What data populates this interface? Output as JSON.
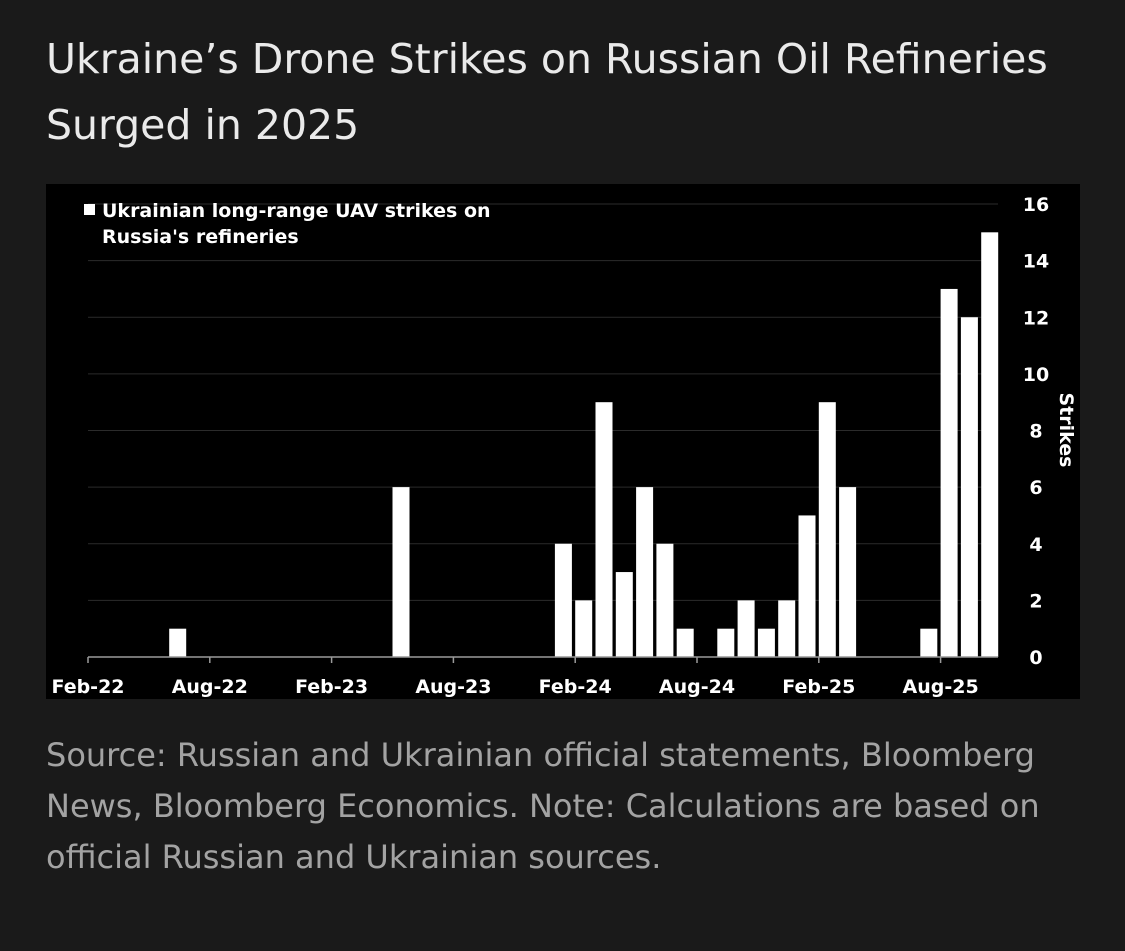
{
  "title": "Ukraine’s Drone Strikes on Russian Oil Refineries Surged in 2025",
  "source_note": "Source: Russian and Ukrainian official statements, Bloomberg News, Bloomberg Economics. Note: Calculations are based on official Russian and Ukrainian sources.",
  "colors": {
    "background": "#1a1a1a",
    "panel": "#000000",
    "bars": "#ffffff",
    "grid": "#2b2b2b",
    "text": "#ffffff"
  },
  "chart_data": {
    "type": "bar",
    "legend": "Ukrainian long-range UAV strikes on Russia's refineries",
    "legend_position": "top-left",
    "xlabel": "",
    "ylabel": "Strikes",
    "ylim": [
      0,
      16
    ],
    "yticks": [
      0,
      2,
      4,
      6,
      8,
      10,
      12,
      14,
      16
    ],
    "y_axis_side": "right",
    "grid": true,
    "xtick_labels": [
      "Feb-22",
      "Aug-22",
      "Feb-23",
      "Aug-23",
      "Feb-24",
      "Aug-24",
      "Feb-25",
      "Aug-25"
    ],
    "categories": [
      "Feb-22",
      "Mar-22",
      "Apr-22",
      "May-22",
      "Jun-22",
      "Jul-22",
      "Aug-22",
      "Sep-22",
      "Oct-22",
      "Nov-22",
      "Dec-22",
      "Jan-23",
      "Feb-23",
      "Mar-23",
      "Apr-23",
      "May-23",
      "Jun-23",
      "Jul-23",
      "Aug-23",
      "Sep-23",
      "Oct-23",
      "Nov-23",
      "Dec-23",
      "Jan-24",
      "Feb-24",
      "Mar-24",
      "Apr-24",
      "May-24",
      "Jun-24",
      "Jul-24",
      "Aug-24",
      "Sep-24",
      "Oct-24",
      "Nov-24",
      "Dec-24",
      "Jan-25",
      "Feb-25",
      "Mar-25",
      "Apr-25",
      "May-25",
      "Jun-25",
      "Jul-25",
      "Aug-25",
      "Sep-25",
      "Oct-25",
      "Nov-25"
    ],
    "values": [
      0,
      0,
      0,
      0,
      1,
      0,
      0,
      0,
      0,
      0,
      0,
      0,
      0,
      0,
      0,
      6,
      0,
      0,
      0,
      0,
      0,
      0,
      0,
      4,
      2,
      9,
      3,
      6,
      4,
      1,
      0,
      1,
      2,
      1,
      2,
      5,
      9,
      6,
      0,
      0,
      0,
      1,
      13,
      12,
      15,
      0
    ]
  }
}
